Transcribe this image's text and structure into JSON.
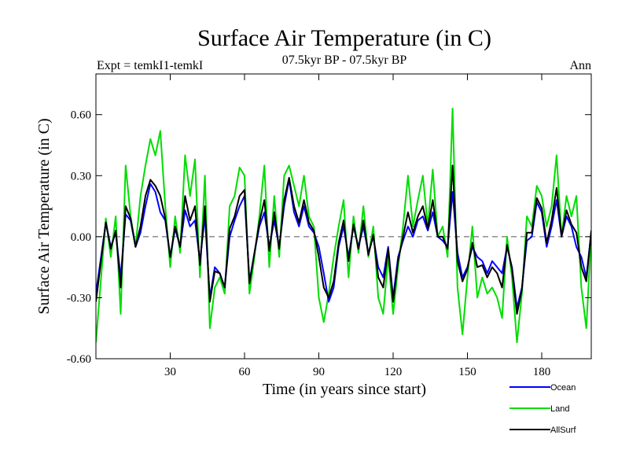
{
  "chart_data": {
    "type": "line",
    "title": "Surface Air Temperature (in C)",
    "subtitle": "07.5kyr BP - 07.5kyr BP",
    "left_label": "Expt = temkI1-temkI",
    "right_label": "Ann",
    "xlabel": "Time (in years since start)",
    "ylabel": "Surface Air Temperature (in C)",
    "xlim": [
      0,
      200
    ],
    "ylim": [
      -0.6,
      0.8
    ],
    "x_ticks": [
      30,
      60,
      90,
      120,
      150,
      180
    ],
    "x_tick_labels": [
      "30",
      "60",
      "90",
      "120",
      "150",
      "180"
    ],
    "y_ticks": [
      -0.6,
      -0.3,
      0.0,
      0.3,
      0.6
    ],
    "y_tick_labels": [
      "-0.60",
      "-0.30",
      "0.00",
      "0.30",
      "0.60"
    ],
    "zero_line": "dashed",
    "x": [
      0,
      4,
      6,
      8,
      10,
      12,
      14,
      16,
      18,
      20,
      22,
      24,
      26,
      28,
      30,
      32,
      34,
      36,
      38,
      40,
      42,
      44,
      46,
      48,
      50,
      52,
      54,
      56,
      58,
      60,
      62,
      64,
      66,
      68,
      70,
      72,
      74,
      76,
      78,
      80,
      82,
      84,
      86,
      88,
      90,
      92,
      94,
      96,
      98,
      100,
      102,
      104,
      106,
      108,
      110,
      112,
      114,
      116,
      118,
      120,
      122,
      124,
      126,
      128,
      130,
      132,
      134,
      136,
      138,
      140,
      142,
      144,
      146,
      148,
      150,
      152,
      154,
      156,
      158,
      160,
      162,
      164,
      166,
      168,
      170,
      172,
      174,
      176,
      178,
      180,
      182,
      184,
      186,
      188,
      190,
      192,
      194,
      196,
      198,
      200
    ],
    "series": [
      {
        "name": "Ocean",
        "color": "#0000ff",
        "values": [
          -0.28,
          0.07,
          -0.05,
          0.02,
          -0.2,
          0.11,
          0.08,
          -0.05,
          0.02,
          0.15,
          0.26,
          0.22,
          0.12,
          0.08,
          -0.1,
          0.04,
          -0.05,
          0.13,
          0.05,
          0.08,
          -0.12,
          0.1,
          -0.3,
          -0.15,
          -0.18,
          -0.25,
          0.0,
          0.08,
          0.15,
          0.2,
          -0.22,
          -0.08,
          0.05,
          0.12,
          -0.05,
          0.08,
          -0.05,
          0.15,
          0.28,
          0.12,
          0.05,
          0.15,
          0.05,
          0.02,
          -0.05,
          -0.18,
          -0.32,
          -0.25,
          -0.05,
          0.05,
          -0.1,
          0.05,
          -0.05,
          0.05,
          -0.08,
          0.0,
          -0.15,
          -0.2,
          -0.05,
          -0.3,
          -0.1,
          -0.02,
          0.05,
          0.0,
          0.08,
          0.1,
          0.03,
          0.12,
          0.0,
          -0.02,
          -0.05,
          0.22,
          -0.08,
          -0.2,
          -0.15,
          -0.05,
          -0.1,
          -0.12,
          -0.18,
          -0.12,
          -0.15,
          -0.18,
          -0.05,
          -0.15,
          -0.35,
          -0.25,
          -0.02,
          0.0,
          0.17,
          0.12,
          -0.05,
          0.05,
          0.18,
          0.0,
          0.1,
          0.05,
          -0.05,
          -0.1,
          -0.2,
          0.02
        ]
      },
      {
        "name": "Land",
        "color": "#00dd00",
        "values": [
          -0.52,
          0.09,
          -0.1,
          0.1,
          -0.38,
          0.35,
          0.1,
          -0.05,
          0.2,
          0.35,
          0.48,
          0.4,
          0.52,
          0.15,
          -0.15,
          0.1,
          -0.08,
          0.4,
          0.2,
          0.38,
          -0.2,
          0.3,
          -0.45,
          -0.25,
          -0.2,
          -0.28,
          0.15,
          0.2,
          0.34,
          0.3,
          -0.28,
          -0.1,
          0.1,
          0.35,
          -0.15,
          0.2,
          -0.1,
          0.3,
          0.35,
          0.25,
          0.15,
          0.3,
          0.1,
          0.05,
          -0.3,
          -0.42,
          -0.28,
          -0.1,
          0.05,
          0.18,
          -0.2,
          0.1,
          -0.08,
          0.15,
          -0.1,
          0.05,
          -0.3,
          -0.38,
          -0.1,
          -0.38,
          -0.15,
          0.05,
          0.3,
          0.05,
          0.18,
          0.3,
          0.05,
          0.33,
          0.0,
          0.05,
          -0.1,
          0.63,
          -0.25,
          -0.48,
          -0.2,
          0.05,
          -0.3,
          -0.2,
          -0.28,
          -0.25,
          -0.3,
          -0.4,
          0.0,
          -0.2,
          -0.52,
          -0.28,
          0.1,
          0.05,
          0.25,
          0.2,
          0.05,
          0.15,
          0.4,
          0.0,
          0.2,
          0.1,
          0.2,
          -0.25,
          -0.45,
          0.02
        ]
      },
      {
        "name": "AllSurf",
        "color": "#000000",
        "values": [
          -0.32,
          0.07,
          -0.06,
          0.03,
          -0.25,
          0.15,
          0.09,
          -0.05,
          0.05,
          0.2,
          0.28,
          0.25,
          0.2,
          0.09,
          -0.1,
          0.05,
          -0.05,
          0.2,
          0.08,
          0.15,
          -0.14,
          0.15,
          -0.32,
          -0.17,
          -0.18,
          -0.25,
          0.04,
          0.1,
          0.2,
          0.23,
          -0.23,
          -0.08,
          0.07,
          0.18,
          -0.07,
          0.12,
          -0.06,
          0.18,
          0.29,
          0.15,
          0.07,
          0.18,
          0.07,
          0.03,
          -0.1,
          -0.25,
          -0.3,
          -0.22,
          -0.03,
          0.08,
          -0.12,
          0.06,
          -0.06,
          0.08,
          -0.09,
          0.01,
          -0.2,
          -0.25,
          -0.06,
          -0.32,
          -0.12,
          0.0,
          0.12,
          0.02,
          0.1,
          0.15,
          0.04,
          0.18,
          0.0,
          0.0,
          -0.06,
          0.35,
          -0.12,
          -0.22,
          -0.16,
          -0.03,
          -0.15,
          -0.14,
          -0.2,
          -0.15,
          -0.18,
          -0.25,
          -0.04,
          -0.16,
          -0.38,
          -0.26,
          0.02,
          0.02,
          0.19,
          0.14,
          -0.03,
          0.08,
          0.24,
          0.0,
          0.13,
          0.06,
          0.02,
          -0.15,
          -0.22,
          0.03
        ]
      }
    ]
  }
}
